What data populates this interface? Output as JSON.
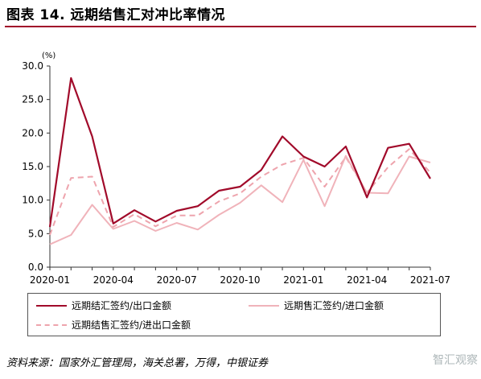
{
  "header": {
    "title": "图表 14. 远期结售汇对冲比率情况"
  },
  "chart_data": {
    "type": "line",
    "unit_label": "(%)",
    "x": [
      "2020-01",
      "2020-02",
      "2020-03",
      "2020-04",
      "2020-05",
      "2020-06",
      "2020-07",
      "2020-08",
      "2020-09",
      "2020-10",
      "2020-11",
      "2020-12",
      "2021-01",
      "2021-02",
      "2021-03",
      "2021-04",
      "2021-05",
      "2021-06",
      "2021-07"
    ],
    "xticks": [
      "2020-01",
      "2020-04",
      "2020-07",
      "2020-10",
      "2021-01",
      "2021-04",
      "2021-07"
    ],
    "yticks": [
      "0.0",
      "5.0",
      "10.0",
      "15.0",
      "20.0",
      "25.0",
      "30.0"
    ],
    "ylim": [
      0,
      30
    ],
    "grid": false,
    "legend_position": "bottom",
    "series": [
      {
        "name": "远期结汇签约/出口金额",
        "color": "#a10a2a",
        "style": "solid",
        "values": [
          6.0,
          28.2,
          19.5,
          6.5,
          8.5,
          6.8,
          8.4,
          9.1,
          11.4,
          12.0,
          14.5,
          19.5,
          16.5,
          15.0,
          18.0,
          10.4,
          17.8,
          18.4,
          13.2
        ]
      },
      {
        "name": "远期售汇签约/进口金额",
        "color": "#f0b3ba",
        "style": "solid",
        "values": [
          3.4,
          4.8,
          9.3,
          5.7,
          6.9,
          5.4,
          6.6,
          5.6,
          7.8,
          9.6,
          12.2,
          9.7,
          16.0,
          9.1,
          16.6,
          11.1,
          11.0,
          16.5,
          15.6
        ]
      },
      {
        "name": "远期结售汇签约/进出口金额",
        "color": "#eea4ad",
        "style": "dashed",
        "values": [
          4.8,
          13.3,
          13.5,
          6.0,
          7.9,
          6.1,
          7.7,
          7.7,
          9.8,
          11.0,
          13.5,
          15.3,
          16.3,
          12.0,
          16.4,
          11.1,
          14.9,
          17.6,
          14.1
        ]
      }
    ]
  },
  "source": {
    "text": "资料来源：国家外汇管理局，海关总署，万得，中银证券"
  },
  "watermark": {
    "text": "智汇观察"
  }
}
